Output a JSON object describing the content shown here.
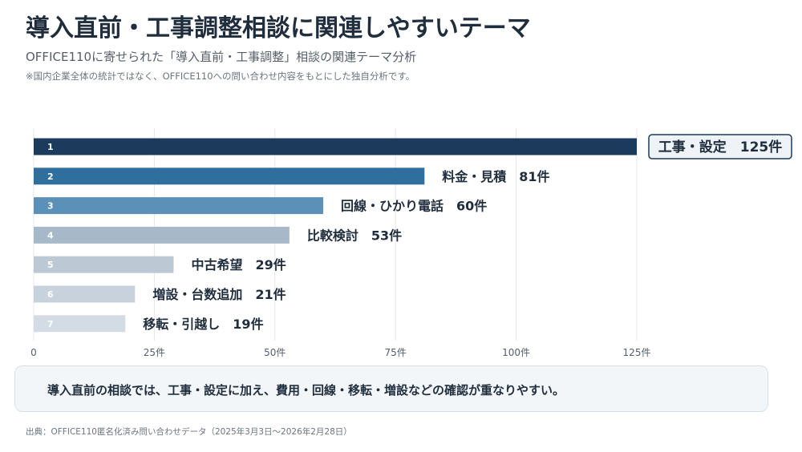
{
  "header": {
    "title": "導入直前・工事調整相談に関連しやすいテーマ",
    "subtitle": "OFFICE110に寄せられた「導入直前・工事調整」相談の関連テーマ分析",
    "note": "※国内企業全体の統計ではなく、OFFICE110への問い合わせ内容をもとにした独自分析です。"
  },
  "chart_data": {
    "type": "bar",
    "orientation": "horizontal",
    "categories": [
      "工事・設定",
      "料金・見積",
      "回線・ひかり電話",
      "比較検討",
      "中古希望",
      "増設・台数追加",
      "移転・引越し"
    ],
    "values": [
      125,
      81,
      60,
      53,
      29,
      21,
      19
    ],
    "ranks": [
      "1",
      "2",
      "3",
      "4",
      "5",
      "6",
      "7"
    ],
    "bar_labels": [
      "工事・設定　125件",
      "料金・見積　81件",
      "回線・ひかり電話　60件",
      "比較検討　53件",
      "中古希望　29件",
      "増設・台数追加　21件",
      "移転・引越し　19件"
    ],
    "bar_colors": [
      "#1b3a5c",
      "#2e6f9e",
      "#5b90b8",
      "#a7b8c8",
      "#bcc8d3",
      "#c8d2dc",
      "#d3dce4"
    ],
    "xlim": [
      0,
      125
    ],
    "xticks": [
      "0",
      "25件",
      "50件",
      "75件",
      "100件",
      "125件"
    ],
    "xtick_values": [
      0,
      25,
      50,
      75,
      100,
      125
    ],
    "grid": true,
    "highlight_index": 0
  },
  "callout": {
    "text": "導入直前の相談では、工事・設定に加え、費用・回線・移転・増設などの確認が重なりやすい。"
  },
  "source": "出典：OFFICE110匿名化済み問い合わせデータ（2025年3月3日〜2026年2月28日）"
}
